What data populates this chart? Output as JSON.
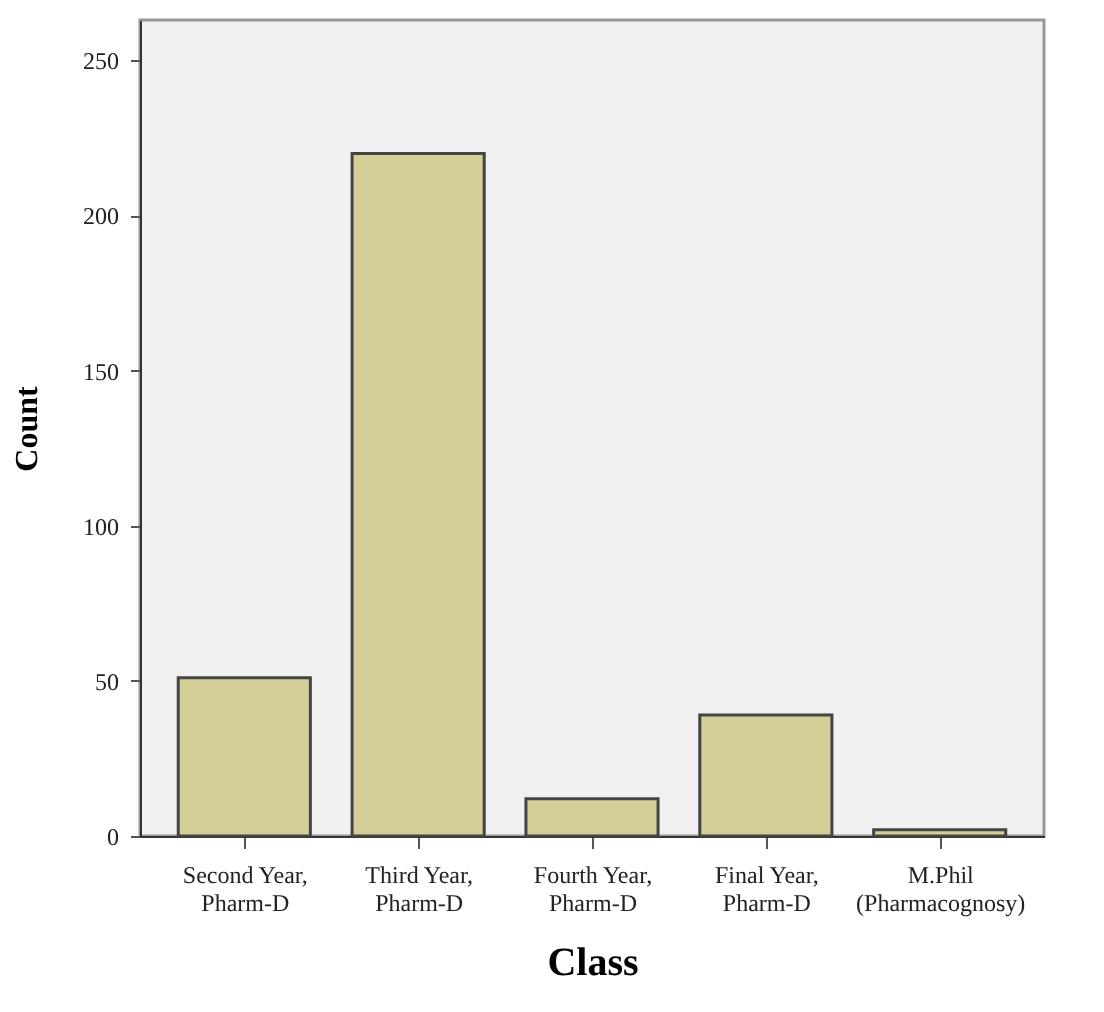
{
  "chart_data": {
    "type": "bar",
    "categories": [
      "Second Year,\nPharm-D",
      "Third Year,\nPharm-D",
      "Fourth Year,\nPharm-D",
      "Final Year,\nPharm-D",
      "M.Phil\n(Pharmacognosy)"
    ],
    "values": [
      51,
      220,
      12,
      39,
      2
    ],
    "color": "#d3cf96",
    "xlabel": "Class",
    "ylabel": "Count",
    "ylim": [
      0,
      263
    ],
    "yticks": [
      0,
      50,
      100,
      150,
      200,
      250
    ],
    "grid": false
  }
}
